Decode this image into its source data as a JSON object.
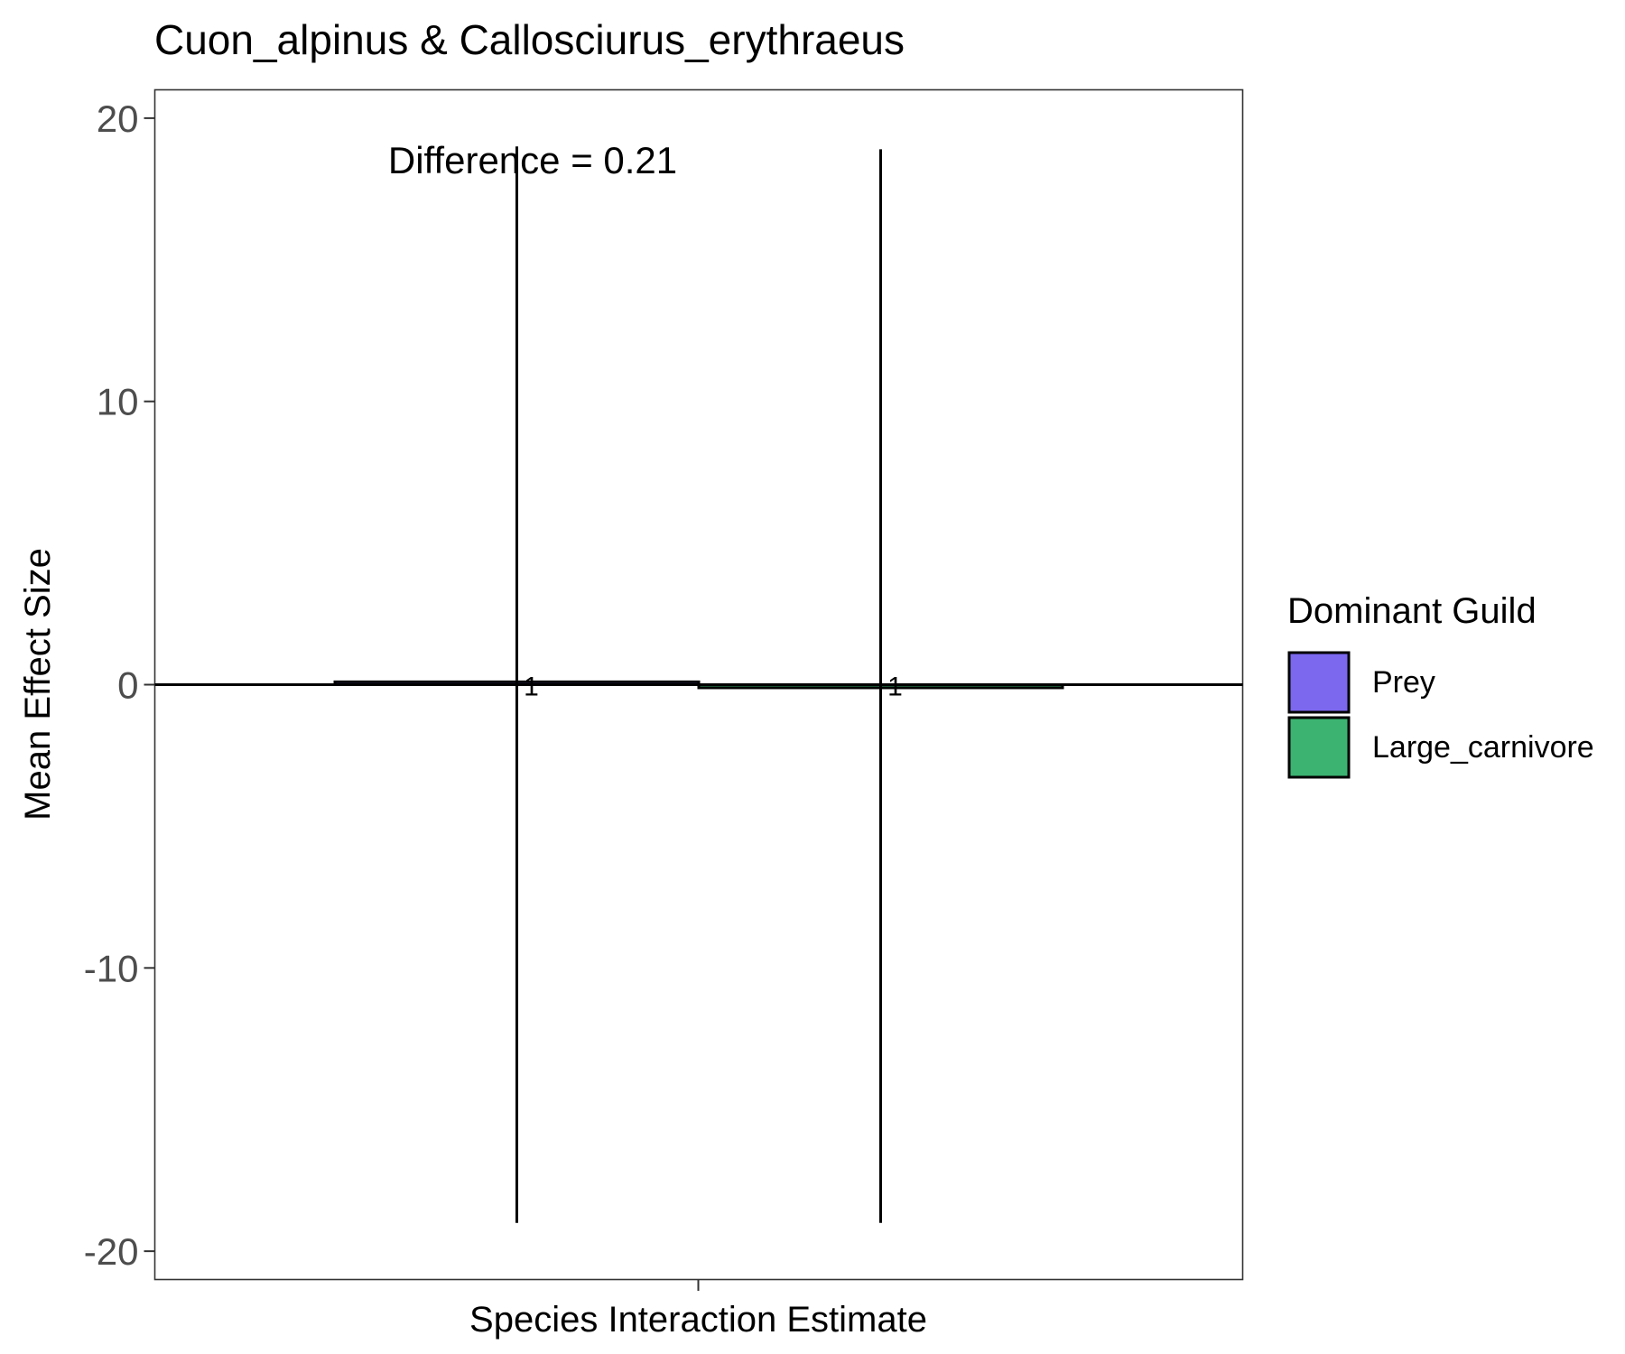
{
  "chart_data": {
    "type": "bar",
    "title": "Cuon_alpinus & Callosciurus_erythraeus",
    "xlabel": "Species Interaction Estimate",
    "ylabel": "Mean Effect Size",
    "ylim": [
      -21,
      21
    ],
    "yticks": [
      {
        "value": 20,
        "label": "20"
      },
      {
        "value": 10,
        "label": "10"
      },
      {
        "value": 0,
        "label": "0"
      },
      {
        "value": -10,
        "label": "-10"
      },
      {
        "value": -20,
        "label": "-20"
      }
    ],
    "grid": false,
    "legend": {
      "title": "Dominant Guild",
      "position": "right"
    },
    "annotation": "Difference = 0.21",
    "series": [
      {
        "name": "Prey",
        "color": "#7B68EE",
        "value": 0.1,
        "error_low": -19.0,
        "error_high": 19.0,
        "label": "1"
      },
      {
        "name": "Large_carnivore",
        "color": "#3CB371",
        "value": -0.11,
        "error_low": -19.0,
        "error_high": 18.9,
        "label": "1"
      }
    ]
  }
}
